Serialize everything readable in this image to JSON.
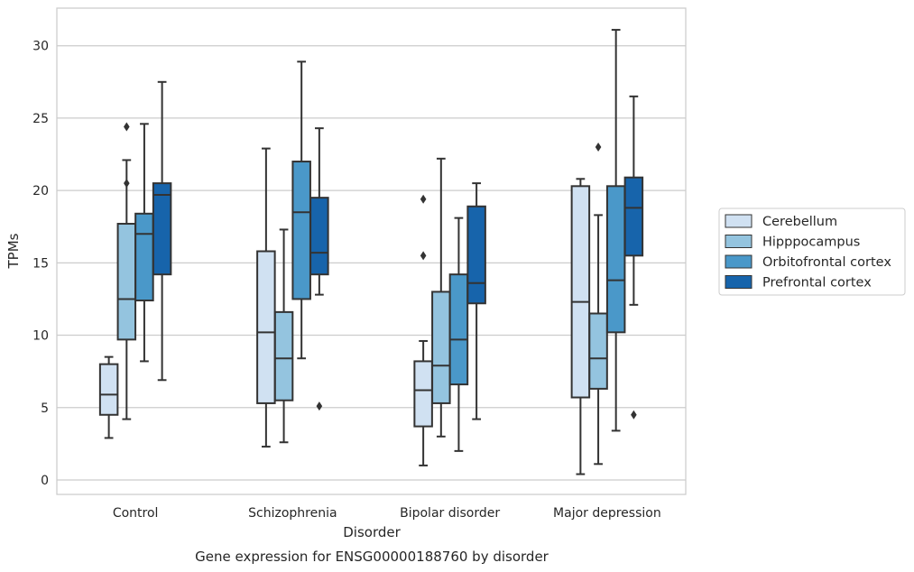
{
  "chart_data": {
    "type": "box",
    "title": "",
    "caption": "Gene expression for ENSG00000188760 by disorder",
    "xlabel": "Disorder",
    "ylabel": "TPMs",
    "ylim": [
      -1,
      32.6
    ],
    "yticks": [
      0,
      5,
      10,
      15,
      20,
      25,
      30
    ],
    "grid": true,
    "legend_placement": "center-right",
    "categories": [
      "Control",
      "Schizophrenia",
      "Bipolar disorder",
      "Major depression"
    ],
    "series": [
      {
        "name": "Cerebellum",
        "color": "#d0e1f2",
        "boxes": [
          {
            "whislo": 2.9,
            "q1": 4.5,
            "med": 5.9,
            "q3": 8.0,
            "whishi": 8.5,
            "fliers": []
          },
          {
            "whislo": 2.3,
            "q1": 5.3,
            "med": 10.2,
            "q3": 15.8,
            "whishi": 22.9,
            "fliers": []
          },
          {
            "whislo": 1.0,
            "q1": 3.7,
            "med": 6.2,
            "q3": 8.2,
            "whishi": 9.6,
            "fliers": [
              15.5,
              19.4
            ]
          },
          {
            "whislo": 0.4,
            "q1": 5.7,
            "med": 12.3,
            "q3": 20.3,
            "whishi": 20.8,
            "fliers": []
          }
        ]
      },
      {
        "name": "Hipppocampus",
        "color": "#94c4df",
        "boxes": [
          {
            "whislo": 4.2,
            "q1": 9.7,
            "med": 12.5,
            "q3": 17.7,
            "whishi": 22.1,
            "fliers": [
              20.5,
              24.4
            ]
          },
          {
            "whislo": 2.6,
            "q1": 5.5,
            "med": 8.4,
            "q3": 11.6,
            "whishi": 17.3,
            "fliers": []
          },
          {
            "whislo": 3.0,
            "q1": 5.3,
            "med": 7.9,
            "q3": 13.0,
            "whishi": 22.2,
            "fliers": []
          },
          {
            "whislo": 1.1,
            "q1": 6.3,
            "med": 8.4,
            "q3": 11.5,
            "whishi": 18.3,
            "fliers": [
              23.0
            ]
          }
        ]
      },
      {
        "name": "Orbitofrontal cortex",
        "color": "#4a98c9",
        "boxes": [
          {
            "whislo": 8.2,
            "q1": 12.4,
            "med": 17.0,
            "q3": 18.4,
            "whishi": 24.6,
            "fliers": []
          },
          {
            "whislo": 8.4,
            "q1": 12.5,
            "med": 18.5,
            "q3": 22.0,
            "whishi": 28.9,
            "fliers": []
          },
          {
            "whislo": 2.0,
            "q1": 6.6,
            "med": 9.7,
            "q3": 14.2,
            "whishi": 18.1,
            "fliers": []
          },
          {
            "whislo": 3.4,
            "q1": 10.2,
            "med": 13.8,
            "q3": 20.3,
            "whishi": 31.1,
            "fliers": []
          }
        ]
      },
      {
        "name": "Prefrontal cortex",
        "color": "#1764ab",
        "boxes": [
          {
            "whislo": 6.9,
            "q1": 14.2,
            "med": 19.7,
            "q3": 20.5,
            "whishi": 27.5,
            "fliers": []
          },
          {
            "whislo": 12.8,
            "q1": 14.2,
            "med": 15.7,
            "q3": 19.5,
            "whishi": 24.3,
            "fliers": [
              5.1
            ]
          },
          {
            "whislo": 4.2,
            "q1": 12.2,
            "med": 13.6,
            "q3": 18.9,
            "whishi": 20.5,
            "fliers": []
          },
          {
            "whislo": 12.1,
            "q1": 15.5,
            "med": 18.8,
            "q3": 20.9,
            "whishi": 26.5,
            "fliers": [
              4.5
            ]
          }
        ]
      }
    ]
  }
}
